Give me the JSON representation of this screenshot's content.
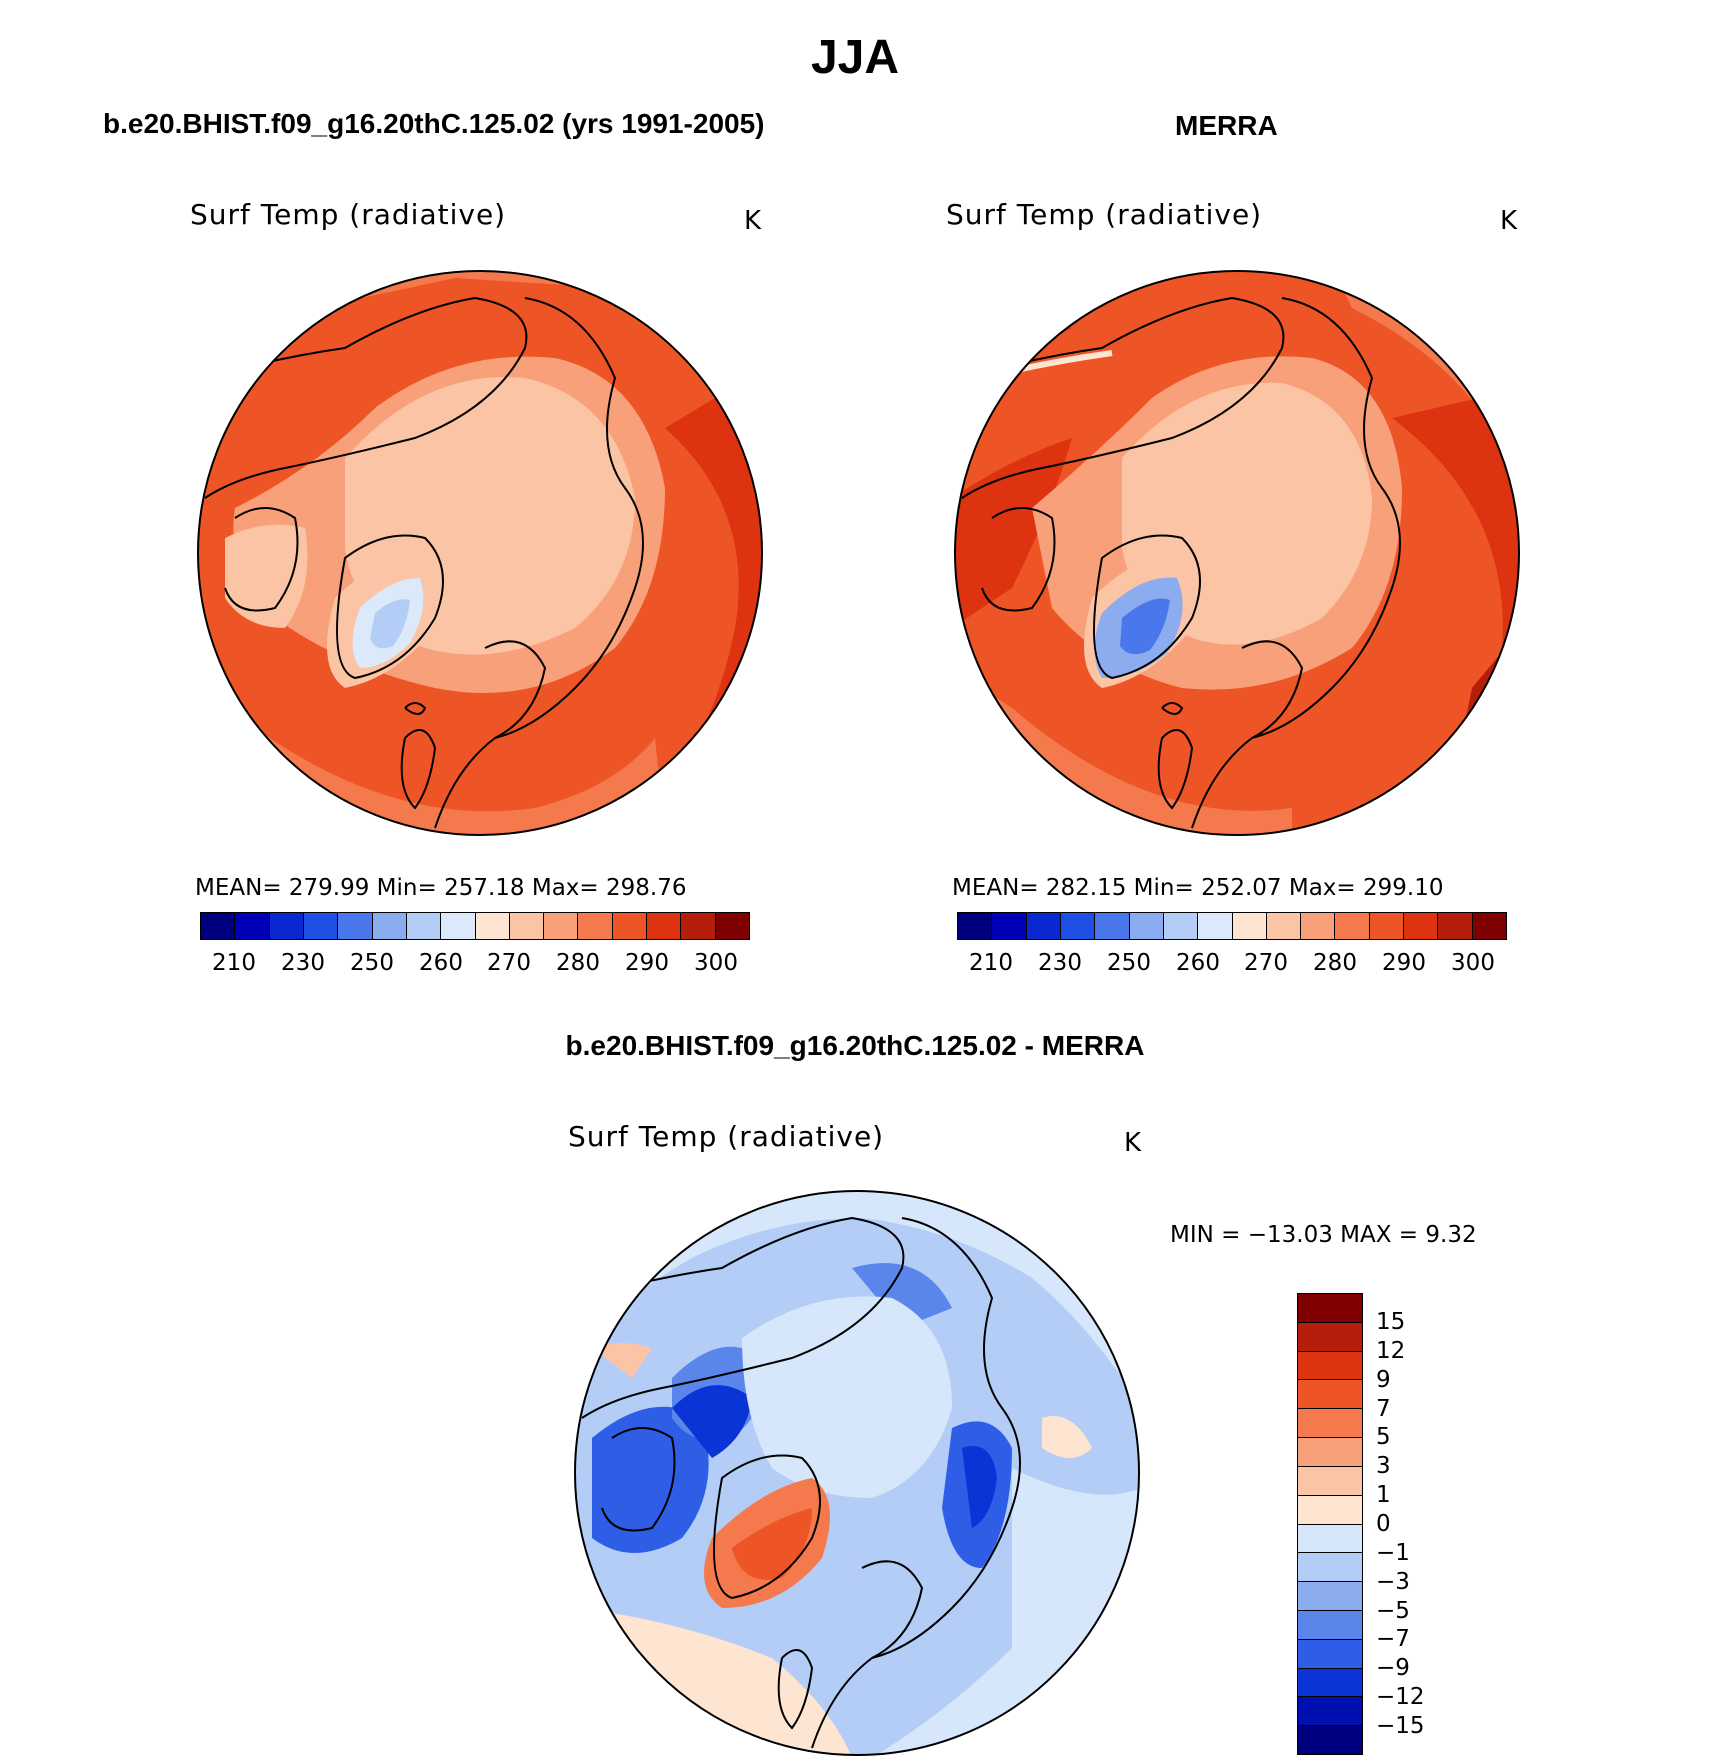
{
  "figure": {
    "title": "JJA"
  },
  "colors": {
    "abs_scale": [
      "#00007f",
      "#0000b8",
      "#0a28d0",
      "#1e50e6",
      "#4a78ec",
      "#8cacf0",
      "#b4cdf7",
      "#dce9fb",
      "#fde5d2",
      "#fbc4a4",
      "#f8a07a",
      "#f47a4e",
      "#ee5526",
      "#dd3310",
      "#b41e0a",
      "#7f0000"
    ],
    "diff_scale": [
      "#7f0000",
      "#b41e0a",
      "#dd3310",
      "#ee5526",
      "#f47a4e",
      "#f8a07a",
      "#fbc4a4",
      "#fde5d2",
      "#d6e6fb",
      "#b4cdf7",
      "#8cacf0",
      "#5a86ec",
      "#2e5ee6",
      "#0a34d6",
      "#0010b0",
      "#00007f"
    ]
  },
  "panels": [
    {
      "title": "b.e20.BHIST.f09_g16.20thC.125.02 (yrs 1991-2005)",
      "variable": "Surf Temp (radiative)",
      "units": "K",
      "stats": "MEAN=  279.99    Min=  257.18    Max=  298.76",
      "mean": 279.99,
      "min": 257.18,
      "max": 298.76
    },
    {
      "title": "MERRA",
      "variable": "Surf Temp (radiative)",
      "units": "K",
      "stats": "MEAN=  282.15    Min=  252.07    Max=  299.10",
      "mean": 282.15,
      "min": 252.07,
      "max": 299.1
    },
    {
      "title": "b.e20.BHIST.f09_g16.20thC.125.02 - MERRA",
      "variable": "Surf Temp (radiative)",
      "units": "K",
      "stats": "MIN = −13.03 MAX =    9.32",
      "min": -13.03,
      "max": 9.32
    }
  ],
  "abs_colorbar_ticks": [
    "210",
    "230",
    "250",
    "260",
    "270",
    "280",
    "290",
    "300"
  ],
  "diff_colorbar_ticks": [
    "15",
    "12",
    "9",
    "7",
    "5",
    "3",
    "1",
    "0",
    "−1",
    "−3",
    "−5",
    "−7",
    "−9",
    "−12",
    "−15"
  ]
}
